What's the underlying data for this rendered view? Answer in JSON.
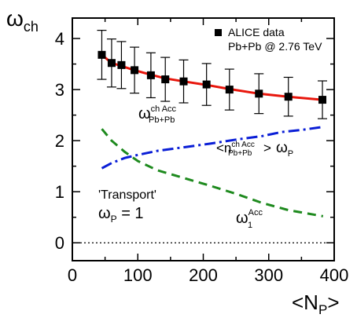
{
  "chart_data": {
    "type": "line",
    "xlim": [
      0,
      400
    ],
    "ylim": [
      -0.35,
      4.4
    ],
    "x_ticks": [
      0,
      100,
      200,
      300,
      400
    ],
    "y_ticks": [
      0,
      1,
      2,
      3,
      4
    ],
    "xlabel": {
      "main": "<N",
      "sub": "P",
      "close": ">"
    },
    "ylabel": {
      "main": "ω",
      "sub": "ch"
    },
    "reference_line_y": 0,
    "legend": {
      "position": "top-right",
      "entries": [
        "ALICE data",
        "Pb+Pb @ 2.76 TeV"
      ]
    },
    "alice_data": {
      "marker": "square",
      "color": "#000000",
      "points": [
        {
          "x": 45,
          "y": 3.68,
          "err": 0.48
        },
        {
          "x": 60,
          "y": 3.52,
          "err": 0.47
        },
        {
          "x": 75,
          "y": 3.48,
          "err": 0.46
        },
        {
          "x": 95,
          "y": 3.38,
          "err": 0.45
        },
        {
          "x": 120,
          "y": 3.28,
          "err": 0.44
        },
        {
          "x": 142,
          "y": 3.2,
          "err": 0.43
        },
        {
          "x": 170,
          "y": 3.16,
          "err": 0.42
        },
        {
          "x": 205,
          "y": 3.1,
          "err": 0.41
        },
        {
          "x": 240,
          "y": 3.0,
          "err": 0.4
        },
        {
          "x": 285,
          "y": 2.92,
          "err": 0.39
        },
        {
          "x": 330,
          "y": 2.86,
          "err": 0.38
        },
        {
          "x": 382,
          "y": 2.8,
          "err": 0.37
        }
      ]
    },
    "series": [
      {
        "id": "omega-acc",
        "color": "#e8160c",
        "dash": "solid",
        "x": [
          45,
          60,
          75,
          95,
          120,
          142,
          170,
          205,
          240,
          285,
          330,
          382
        ],
        "values": [
          3.68,
          3.52,
          3.46,
          3.38,
          3.29,
          3.22,
          3.16,
          3.09,
          3.01,
          2.92,
          2.86,
          2.8
        ]
      },
      {
        "id": "npp-omega-p",
        "color": "#0a1ed6",
        "dash": "dashdot",
        "x": [
          45,
          60,
          80,
          100,
          130,
          170,
          210,
          250,
          290,
          320,
          350,
          383
        ],
        "values": [
          1.46,
          1.56,
          1.66,
          1.72,
          1.8,
          1.87,
          1.94,
          2.02,
          2.09,
          2.17,
          2.21,
          2.27
        ]
      },
      {
        "id": "omega-1-acc",
        "color": "#1e8a1e",
        "dash": "dashed",
        "x": [
          45,
          60,
          80,
          100,
          130,
          170,
          210,
          250,
          290,
          330,
          383
        ],
        "values": [
          2.23,
          2.0,
          1.78,
          1.6,
          1.42,
          1.27,
          1.12,
          0.96,
          0.78,
          0.64,
          0.52
        ]
      }
    ],
    "annotations": {
      "omega_acc": {
        "main": "ω",
        "sup": "ch Acc",
        "sub": "Pb+Pb"
      },
      "npp_omega": {
        "open": "<n",
        "sup": "ch Acc",
        "sub": "Pb+Pb",
        "close": ">",
        "omega": "ω",
        "omega_sub": "P"
      },
      "omega_1": {
        "main": "ω",
        "sup": "Acc",
        "sub": "1"
      },
      "transport": "'Transport'",
      "omega_p_eq": {
        "main": "ω",
        "sub": "P",
        "rest": " = 1"
      }
    }
  }
}
